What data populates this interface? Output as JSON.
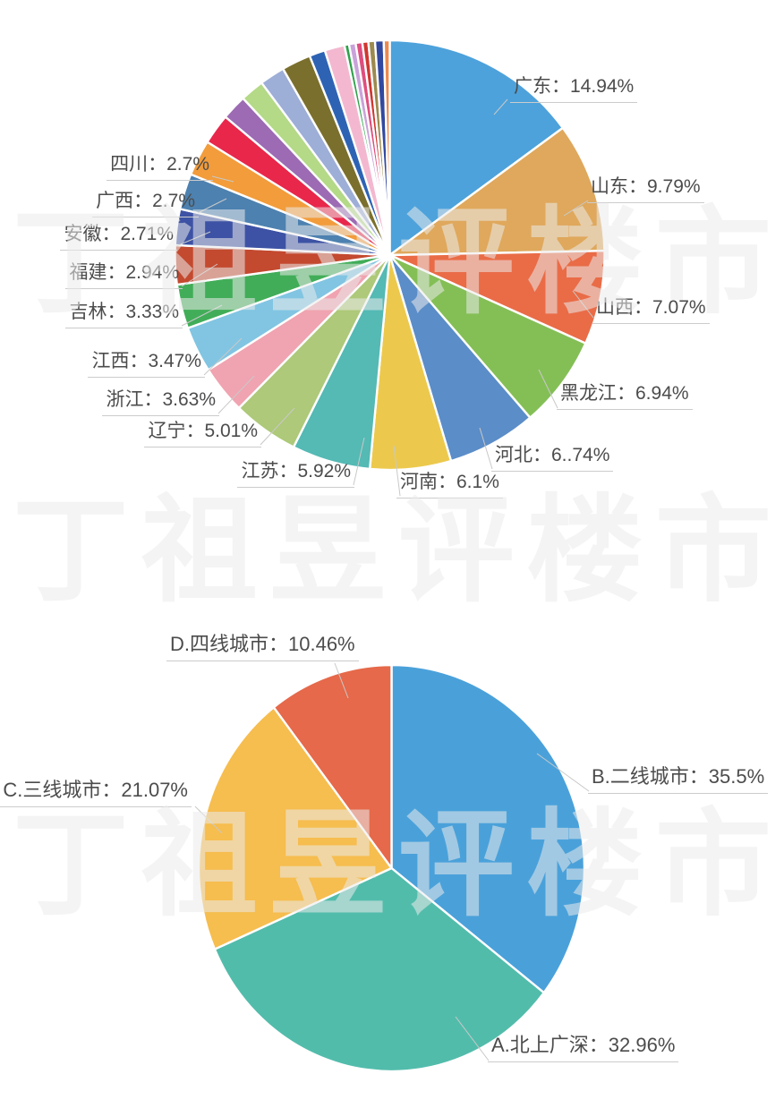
{
  "watermark": {
    "text": "丁祖昱评楼市",
    "chars": [
      "丁",
      "祖",
      "昱",
      "评",
      "楼",
      "市"
    ],
    "color": "#ebebeb"
  },
  "chart_data": [
    {
      "type": "pie",
      "name": "province-share-pie",
      "legend_position": "none",
      "label_style": "outside-with-leader-line",
      "slices": [
        {
          "name": "广东",
          "value": 14.94,
          "label": "广东：14.94%",
          "color": "#4DA2DB"
        },
        {
          "name": "山东",
          "value": 9.79,
          "label": "山东：9.79%",
          "color": "#DFA85C"
        },
        {
          "name": "山西",
          "value": 7.07,
          "label": "山西：7.07%",
          "color": "#E96C47"
        },
        {
          "name": "黑龙江",
          "value": 6.94,
          "label": "黑龙江：6.94%",
          "color": "#84BF56"
        },
        {
          "name": "河北",
          "value": 6.74,
          "label": "河北：6..74%",
          "color": "#5B8DC8"
        },
        {
          "name": "河南",
          "value": 6.1,
          "label": "河南：6.1%",
          "color": "#ECC94D"
        },
        {
          "name": "江苏",
          "value": 5.92,
          "label": "江苏：5.92%",
          "color": "#55B9B4"
        },
        {
          "name": "辽宁",
          "value": 5.01,
          "label": "辽宁：5.01%",
          "color": "#ADC979"
        },
        {
          "name": "浙江",
          "value": 3.63,
          "label": "浙江：3.63%",
          "color": "#F0A3B0"
        },
        {
          "name": "江西",
          "value": 3.47,
          "label": "江西：3.47%",
          "color": "#81C5E2"
        },
        {
          "name": "吉林",
          "value": 3.33,
          "label": "吉林：3.33%",
          "color": "#41AD58"
        },
        {
          "name": "福建",
          "value": 2.94,
          "label": "福建：2.94%",
          "color": "#C3492F"
        },
        {
          "name": "安徽",
          "value": 2.71,
          "label": "安徽：2.71%",
          "color": "#3D52A4"
        },
        {
          "name": "广西",
          "value": 2.7,
          "label": "广西：2.7%",
          "color": "#4D81B0"
        },
        {
          "name": "四川",
          "value": 2.7,
          "label": "四川：2.7%",
          "color": "#F29C3B"
        }
      ],
      "unlabeled_small_slices": [
        {
          "value": 2.3,
          "color": "#E8274B"
        },
        {
          "value": 1.9,
          "color": "#9C6BB4"
        },
        {
          "value": 1.8,
          "color": "#B4D987"
        },
        {
          "value": 1.9,
          "color": "#9DAED7"
        },
        {
          "value": 2.2,
          "color": "#7B6F2D"
        },
        {
          "value": 1.2,
          "color": "#2E63B4"
        },
        {
          "value": 1.5,
          "color": "#F3B8CF"
        },
        {
          "value": 0.35,
          "color": "#2FA04A"
        },
        {
          "value": 0.5,
          "color": "#C9A2DA"
        },
        {
          "value": 0.5,
          "color": "#DE4E7E"
        },
        {
          "value": 0.45,
          "color": "#CF3730"
        },
        {
          "value": 0.5,
          "color": "#9C8A4F"
        },
        {
          "value": 0.65,
          "color": "#32499F"
        },
        {
          "value": 0.45,
          "color": "#EC8A4F"
        }
      ]
    },
    {
      "type": "pie",
      "name": "city-tier-pie",
      "legend_position": "none",
      "label_style": "outside-with-leader-line",
      "slices": [
        {
          "name": "B.二线城市",
          "value": 35.5,
          "label": "B.二线城市：35.5%",
          "color": "#4AA1DA"
        },
        {
          "name": "A.北上广深",
          "value": 32.96,
          "label": "A.北上广深：32.96%",
          "color": "#52BCAB"
        },
        {
          "name": "C.三线城市",
          "value": 21.07,
          "label": "C.三线城市：21.07%",
          "color": "#F6BD4F"
        },
        {
          "name": "D.四线城市",
          "value": 10.46,
          "label": "D.四线城市：10.46%",
          "color": "#E5694A"
        }
      ]
    }
  ]
}
